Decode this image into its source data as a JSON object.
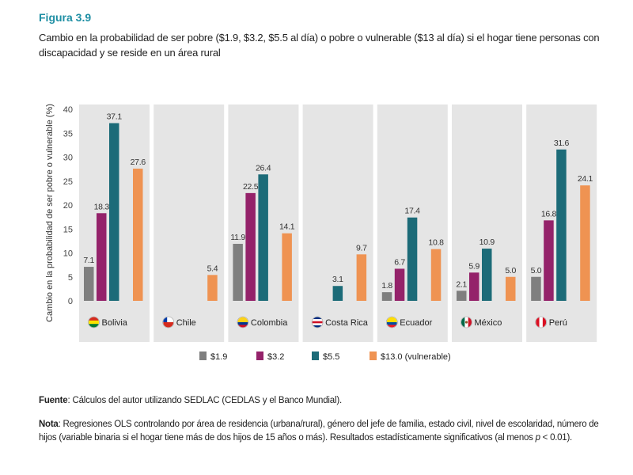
{
  "figure": {
    "label": "Figura 3.9",
    "title": "Cambio en la probabilidad de ser pobre ($1.9, $3.2, $5.5 al día) o pobre o vulnerable ($13 al día) si el hogar tiene personas con discapacidad y se reside en un área rural"
  },
  "footer": {
    "source_label": "Fuente",
    "source_text": ": Cálculos del autor utilizando SEDLAC (CEDLAS y el Banco Mundial).",
    "note_label": "Nota",
    "note_text_1": ": Regresiones OLS controlando por área de residencia (urbana/rural), género del jefe de familia, estado civil, nivel de escolaridad, número de hijos (variable binaria si el hogar tiene más de dos hijos de 15 años o más). Resultados estadísticamente significativos (al menos ",
    "note_p": "p",
    "note_text_2": " < 0.01)."
  },
  "colors": {
    "panel_bg": "#e5e5e5",
    "s1": "#7f7f7f",
    "s2": "#94226a",
    "s3": "#1c6b78",
    "s4": "#ef9352"
  },
  "chart_data": {
    "type": "bar",
    "ylabel": "Cambio en la probabilidad de ser pobre o vulnerable (%)",
    "ylim": [
      0,
      40
    ],
    "yticks": [
      "0",
      "5",
      "10",
      "15",
      "20",
      "25",
      "30",
      "35",
      "40"
    ],
    "grid": false,
    "legend_position": "bottom",
    "categories": [
      "Bolivia",
      "Chile",
      "Colombia",
      "Costa Rica",
      "Ecuador",
      "México",
      "Perú"
    ],
    "category_flags": [
      "bolivia-flag-icon",
      "chile-flag-icon",
      "colombia-flag-icon",
      "costa-rica-flag-icon",
      "ecuador-flag-icon",
      "mexico-flag-icon",
      "peru-flag-icon"
    ],
    "series": [
      {
        "name": "$1.9",
        "color": "#7f7f7f",
        "values": [
          7.1,
          null,
          11.9,
          null,
          1.8,
          2.1,
          5.0
        ],
        "labels": [
          "7.1",
          "",
          "11.9",
          "",
          "1.8",
          "2.1",
          "5.0"
        ]
      },
      {
        "name": "$3.2",
        "color": "#94226a",
        "values": [
          18.3,
          null,
          22.5,
          null,
          6.7,
          5.9,
          16.8
        ],
        "labels": [
          "18.3",
          "",
          "22.5",
          "",
          "6.7",
          "5.9",
          "16.8"
        ]
      },
      {
        "name": "$5.5",
        "color": "#1c6b78",
        "values": [
          37.1,
          null,
          26.4,
          3.1,
          17.4,
          10.9,
          31.6
        ],
        "labels": [
          "37.1",
          "",
          "26.4",
          "3.1",
          "17.4",
          "10.9",
          "31.6"
        ]
      },
      {
        "name": "$13.0 (vulnerable)",
        "color": "#ef9352",
        "values": [
          27.6,
          5.4,
          14.1,
          9.7,
          10.8,
          5.0,
          24.1
        ],
        "labels": [
          "27.6",
          "5.4",
          "14.1",
          "9.7",
          "10.8",
          "5.0",
          "24.1"
        ]
      }
    ]
  }
}
